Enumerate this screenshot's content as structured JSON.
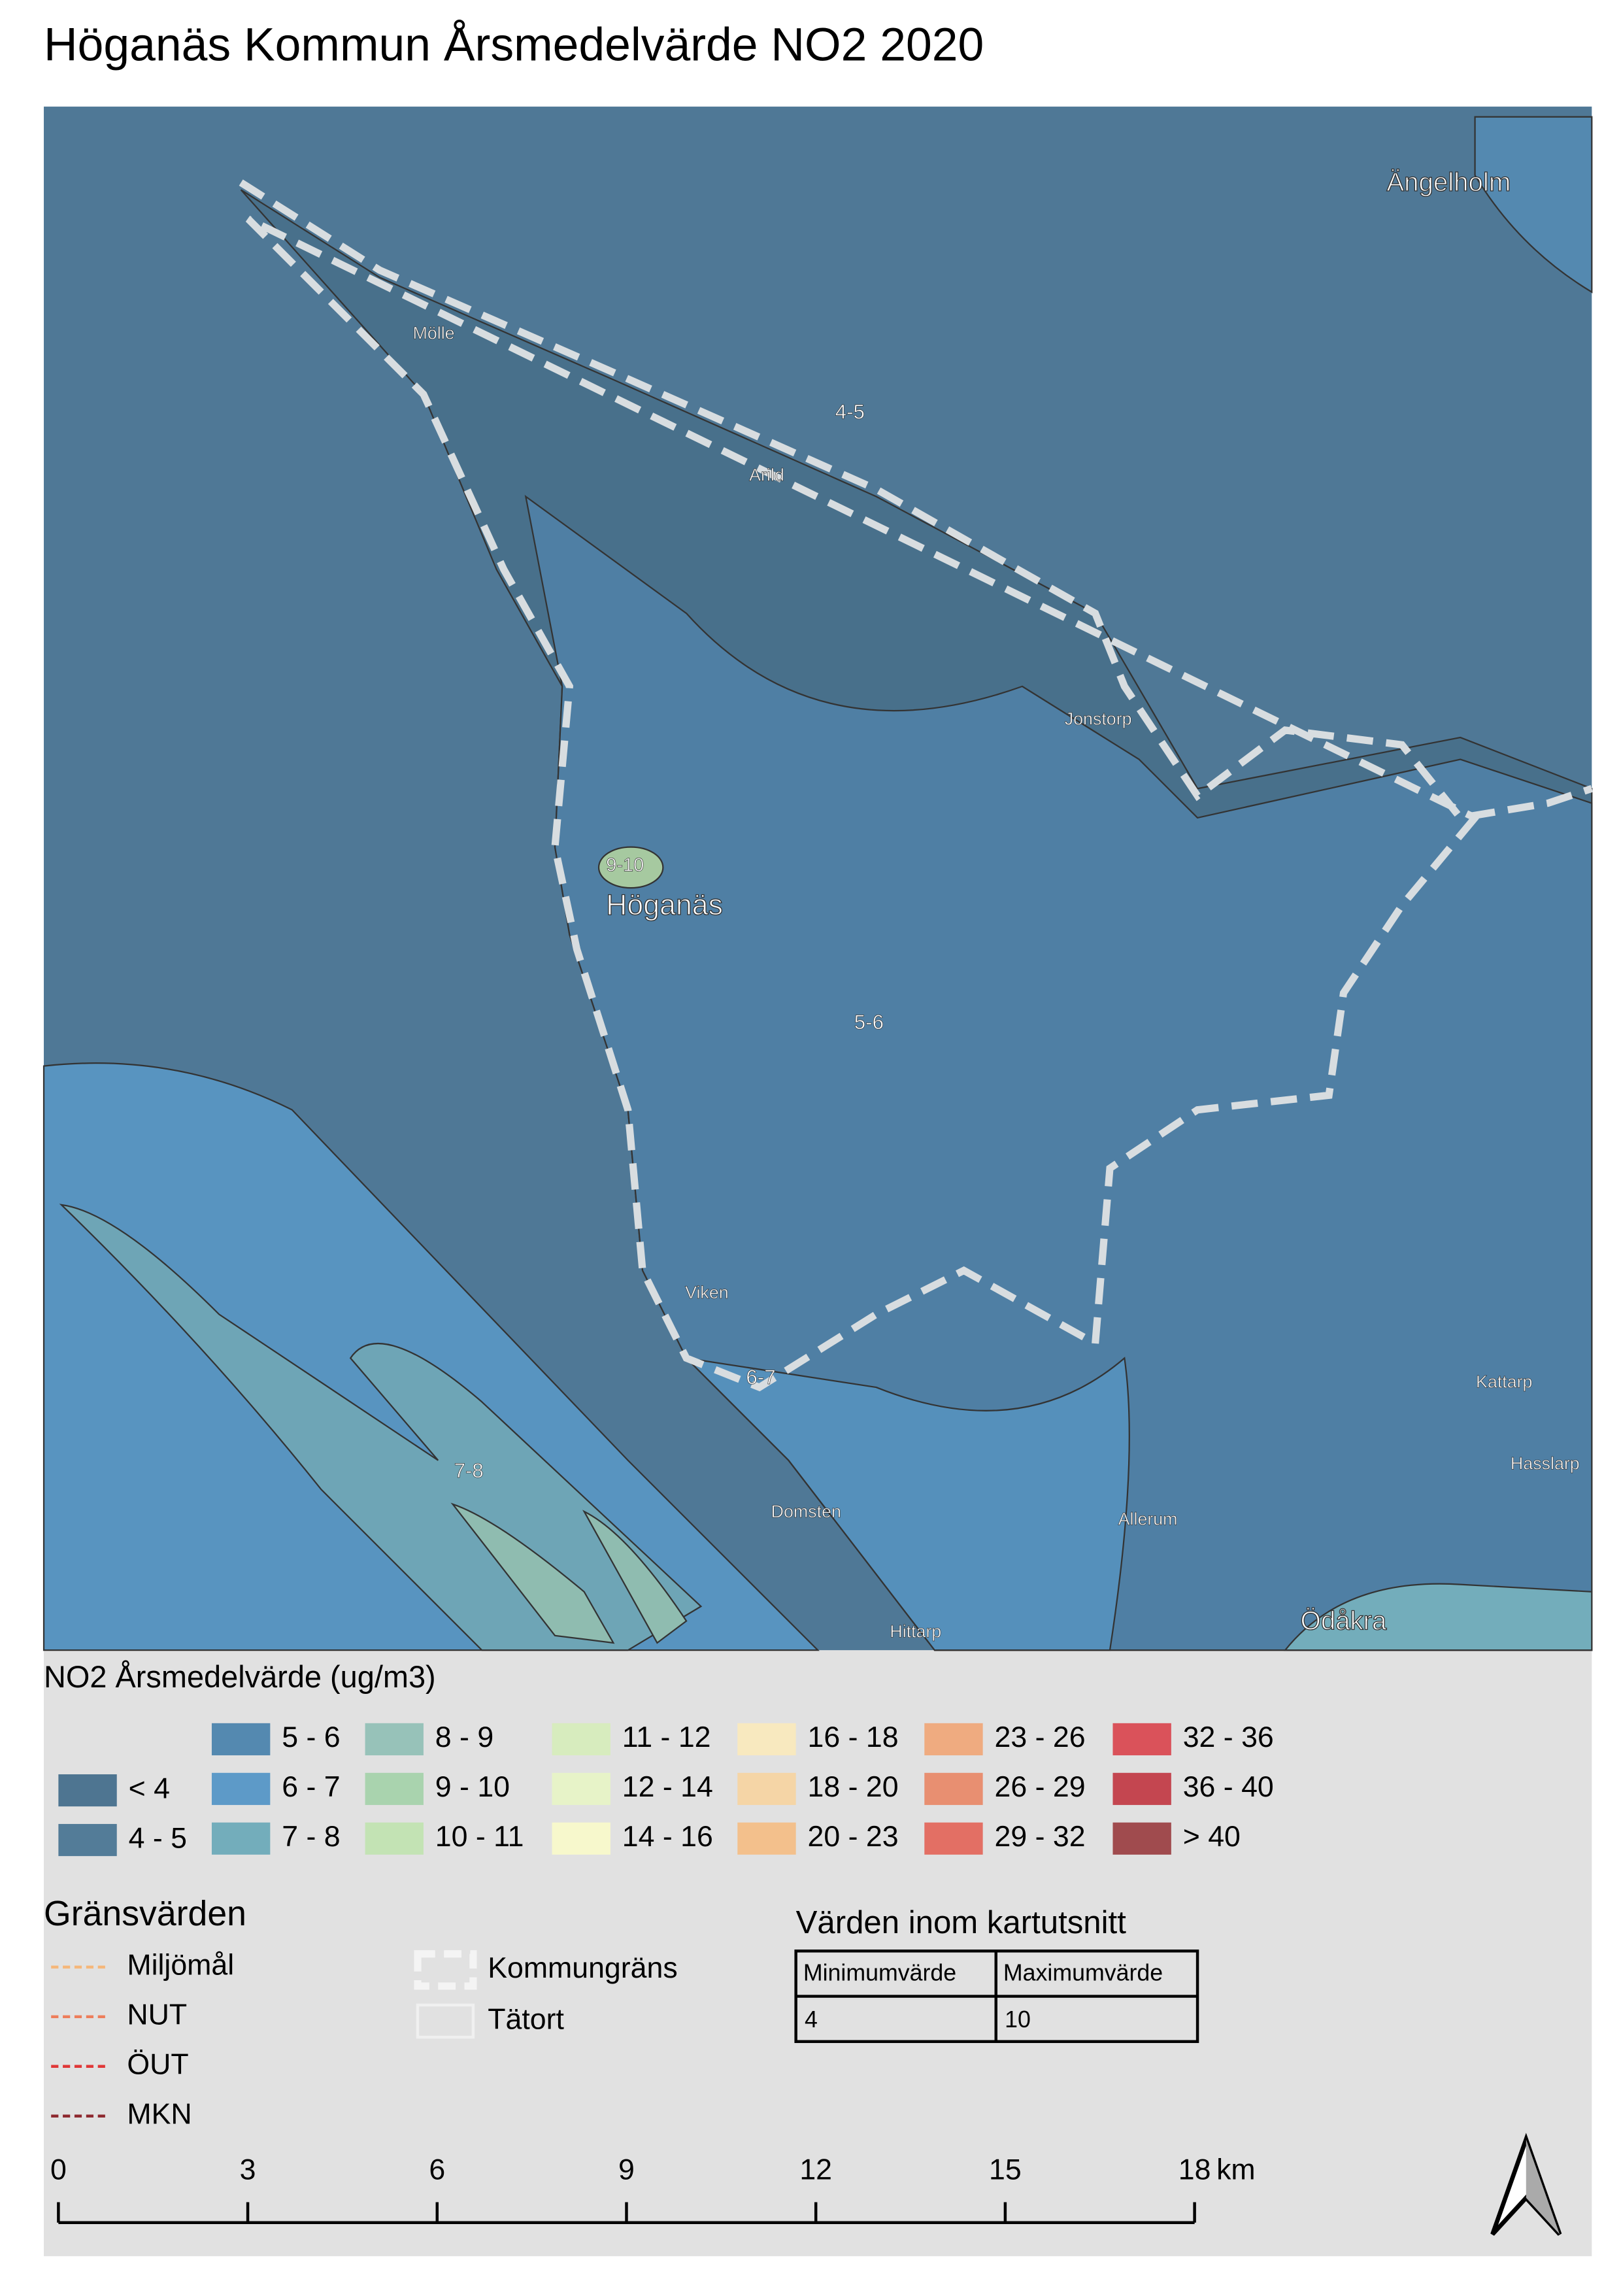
{
  "title": "Höganäs Kommun Årsmedelvärde NO2 2020",
  "map": {
    "labels": [
      "Ängelholm",
      "Mölle",
      "4-5",
      "Arild",
      "Jonstorp",
      "9-10",
      "Höganäs",
      "5-6",
      "Viken",
      "6-7",
      "7-8",
      "Kattarp",
      "Hasslarp",
      "Domsten",
      "Allerum",
      "Hittarp",
      "Ödåkra"
    ]
  },
  "legend": {
    "title": "NO2 Årsmedelvärde (ug/m3)",
    "items": [
      {
        "label": "< 4",
        "color": "#4e7591"
      },
      {
        "label": "4 - 5",
        "color": "#537c98"
      },
      {
        "label": "5 - 6",
        "color": "#5489b0"
      },
      {
        "label": "6 - 7",
        "color": "#5d9ac8"
      },
      {
        "label": "7 - 8",
        "color": "#73adbb"
      },
      {
        "label": "8 - 9",
        "color": "#97c2b9"
      },
      {
        "label": "9 - 10",
        "color": "#a9d3ae"
      },
      {
        "label": "10 - 11",
        "color": "#c3e3b4"
      },
      {
        "label": "11 - 12",
        "color": "#d7ecbe"
      },
      {
        "label": "12 - 14",
        "color": "#e7f3c8"
      },
      {
        "label": "14 - 16",
        "color": "#f7f8cc"
      },
      {
        "label": "16 - 18",
        "color": "#f8e9bf"
      },
      {
        "label": "18 - 20",
        "color": "#f5d5a6"
      },
      {
        "label": "20 - 23",
        "color": "#f3c08c"
      },
      {
        "label": "23 - 26",
        "color": "#efab80"
      },
      {
        "label": "26 - 29",
        "color": "#e88f71"
      },
      {
        "label": "29 - 32",
        "color": "#e36f64"
      },
      {
        "label": "32 - 36",
        "color": "#da525a"
      },
      {
        "label": "36 - 40",
        "color": "#c44650"
      },
      {
        "label": "> 40",
        "color": "#a04b4e"
      }
    ]
  },
  "limits": {
    "title": "Gränsvärden",
    "items": [
      {
        "label": "Miljömål",
        "color": "#f5b77a"
      },
      {
        "label": "NUT",
        "color": "#ee7d5a"
      },
      {
        "label": "ÖUT",
        "color": "#e03838"
      },
      {
        "label": "MKN",
        "color": "#8e2a30"
      }
    ]
  },
  "boundaries": [
    "Kommungräns",
    "Tätort"
  ],
  "table": {
    "title": "Värden inom kartutsnitt",
    "headers": [
      "Minimumvärde",
      "Maximumvärde"
    ],
    "rows": [
      [
        4,
        10
      ]
    ]
  },
  "scale": {
    "ticks": [
      0,
      3,
      6,
      9,
      12,
      15,
      18
    ],
    "unit": "km"
  }
}
